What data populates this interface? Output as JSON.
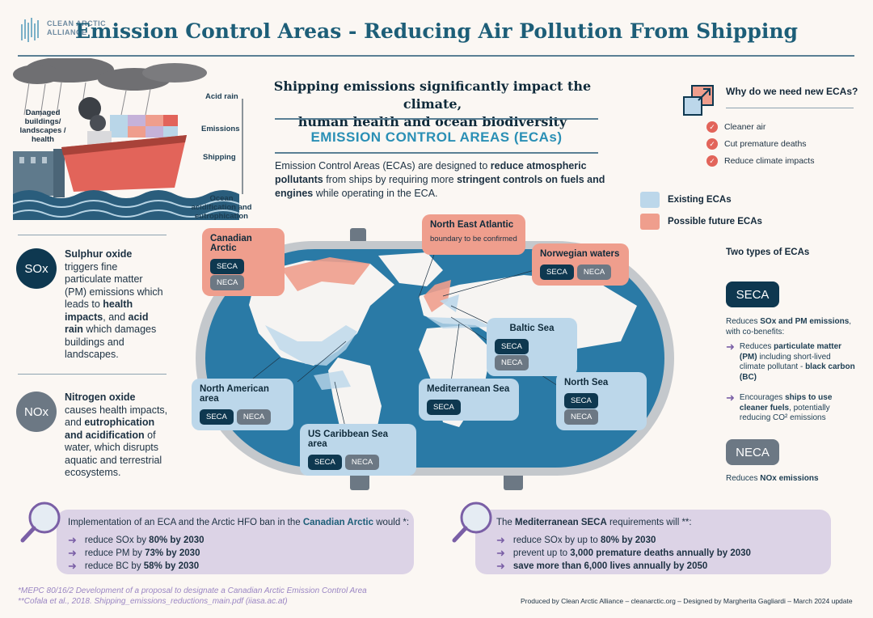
{
  "logo": {
    "line1": "CLEAN ARCTIC",
    "line2": "ALLIANCE"
  },
  "title": "Emission Control Areas - Reducing Air Pollution From Shipping",
  "subtitle": {
    "line1": "Shipping emissions significantly impact the climate,",
    "line2": "human health and ocean biodiversity"
  },
  "eca_heading": "EMISSION CONTROL AREAS (ECAs)",
  "eca_description": {
    "p1": "Emission Control Areas (ECAs) are designed to ",
    "b1": "reduce atmospheric pollutants",
    "p2": " from ships by requiring more ",
    "b2": "stringent controls on fuels and engines",
    "p3": " while operating in the ECA."
  },
  "illustration": {
    "damaged": "Damaged buildings/ landscapes / health",
    "acid_rain": "Acid rain",
    "emissions": "Emissions",
    "shipping": "Shipping",
    "ocean": "Ocean acidification and eutrophication"
  },
  "sox": {
    "badge": "SOx",
    "t1": "Sulphur oxide",
    "t2": " triggers fine particulate matter (PM) emissions which leads to ",
    "t3": "health impacts",
    "t4": ", and ",
    "t5": "acid rain",
    "t6": " which damages buildings and landscapes."
  },
  "nox": {
    "badge": "NOx",
    "t1": "Nitrogen oxide",
    "t2": " causes health impacts, and ",
    "t3": "eutrophication and acidification",
    "t4": " of water, which disrupts aquatic and terrestrial ecosystems."
  },
  "why": {
    "title": "Why do we need new ECAs?",
    "items": [
      "Cleaner air",
      "Cut premature deaths",
      "Reduce climate impacts"
    ]
  },
  "legend": {
    "existing": "Existing ECAs",
    "future": "Possible future ECAs"
  },
  "regions": {
    "canadian_arctic": "Canadian Arctic",
    "north_east_atlantic": "North East Atlantic",
    "nea_note": "boundary to be confirmed",
    "norwegian": "Norwegian waters",
    "baltic": "Baltic Sea",
    "north_american": "North American area",
    "mediterranean": "Mediterranean Sea",
    "north_sea": "North Sea",
    "us_caribbean": "US Caribbean Sea area",
    "seca": "SECA",
    "neca": "NECA"
  },
  "types": {
    "title": "Two types of ECAs",
    "seca": "SECA",
    "seca_desc_pre": "Reduces ",
    "seca_desc_b": "SOx and PM emissions",
    "seca_desc_post": ", with co-benefits:",
    "b1_pre": "Reduces ",
    "b1_b": "particulate matter (PM)",
    "b1_mid": " including short-lived climate pollutant - ",
    "b1_b2": "black carbon (BC)",
    "b2_pre": "Encourages ",
    "b2_b": "ships to use cleaner fuels",
    "b2_post": ", potentially reducing CO² emissions",
    "neca": "NECA",
    "neca_desc_pre": "Reduces ",
    "neca_desc_b": "NOx emissions"
  },
  "panel_left": {
    "intro_pre": "Implementation of an ECA and the Arctic HFO ban in the ",
    "intro_b": "Canadian Arctic",
    "intro_post": " would *:",
    "l1_pre": "reduce SOx by ",
    "l1_b": "80% by 2030",
    "l2_pre": "reduce PM by ",
    "l2_b": "73% by 2030",
    "l3_pre": "reduce BC by ",
    "l3_b": "58% by 2030"
  },
  "panel_right": {
    "intro_pre": "The ",
    "intro_b": "Mediterranean SECA",
    "intro_post": " requirements will **:",
    "l1_pre": "reduce SOx by up to ",
    "l1_b": "80% by 2030",
    "l2_pre": "prevent up to ",
    "l2_b": "3,000 premature deaths annually by 2030",
    "l3_b": "save more than 6,000 lives annually by 2050"
  },
  "footnotes": {
    "f1": "*MEPC 80/16/2 Development of a proposal to designate a Canadian Arctic Emission Control Area",
    "f2": "**Cofala et al., 2018. Shipping_emissions_reductions_main.pdf (iiasa.ac.at)"
  },
  "credit": "Produced by Clean Arctic Alliance – cleanarctic.org – Designed by Margherita Gagliardi – March 2024 update"
}
